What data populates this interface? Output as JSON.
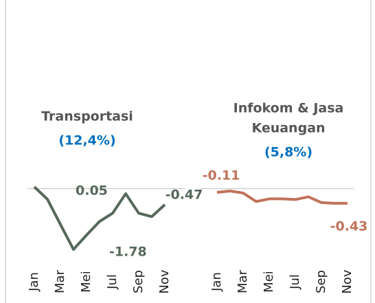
{
  "chart_data": [
    {
      "type": "line",
      "title": [
        "Transportasi"
      ],
      "subtitle": "(12,4%)",
      "categories": [
        "Jan",
        null,
        "Mar",
        null,
        "Mei",
        null,
        "Jul",
        null,
        "Sep",
        null,
        "Nov"
      ],
      "series": [
        {
          "name": null,
          "color": "#56685a",
          "values": [
            0.05,
            -0.31,
            -1.05,
            -1.78,
            -1.36,
            -0.96,
            -0.72,
            -0.15,
            -0.72,
            -0.82,
            -0.47
          ],
          "value_labels": [
            "0.05",
            null,
            null,
            "-1.78",
            null,
            null,
            null,
            null,
            null,
            null,
            "-0.47"
          ]
        }
      ],
      "ylim": [
        -2,
        0.5
      ]
    },
    {
      "type": "line",
      "title": [
        "Infokom & Jasa",
        "Keuangan"
      ],
      "subtitle": "(5,8%)",
      "categories": [
        "Jan",
        null,
        "Mar",
        null,
        "Mei",
        null,
        "Jul",
        null,
        "Sep",
        null,
        "Nov"
      ],
      "series": [
        {
          "name": null,
          "color": "#c0735a",
          "values": [
            -0.11,
            -0.07,
            -0.13,
            -0.38,
            -0.3,
            -0.3,
            -0.32,
            -0.24,
            -0.41,
            -0.43,
            -0.43
          ],
          "value_labels": [
            "-0.11",
            null,
            null,
            null,
            null,
            null,
            null,
            null,
            null,
            null,
            "-0.43"
          ]
        }
      ],
      "ylim": [
        -2,
        0.5
      ]
    }
  ]
}
